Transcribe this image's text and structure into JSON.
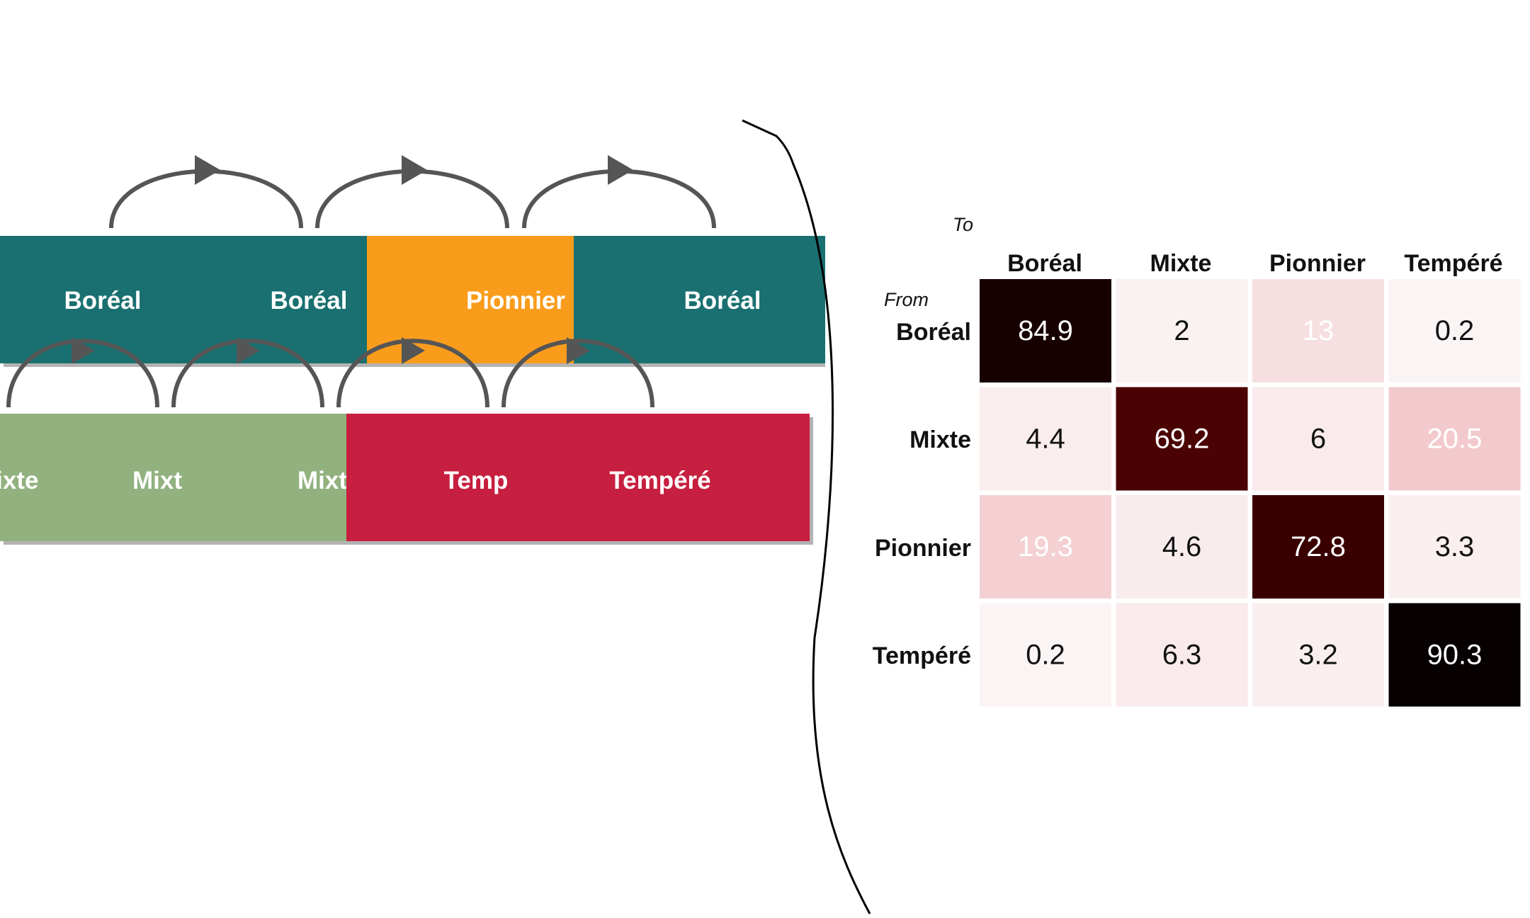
{
  "colors": {
    "boreal": "#1a7070",
    "pionnier": "#f99c1c",
    "mixte": "#91b17e",
    "tempere": "#c71f3f",
    "arrow": "#555555",
    "shadow": "#b3b3b3",
    "label": "#ffffff"
  },
  "timeline": {
    "top": {
      "segments": [
        {
          "state": "boreal",
          "label": "Boréal"
        },
        {
          "state": "boreal",
          "label": "Boréal"
        },
        {
          "state": "pionnier",
          "label": "Pionnier"
        },
        {
          "state": "boreal",
          "label": "Boréal"
        }
      ]
    },
    "bottom": {
      "segments": [
        {
          "state": "mixte",
          "label": "Mixte"
        },
        {
          "state": "mixte",
          "label": "Mixte"
        },
        {
          "state": "mixte",
          "label": "Mixte"
        },
        {
          "state": "tempere",
          "label": "Temp"
        },
        {
          "state": "tempere",
          "label": "Tempéré"
        }
      ]
    }
  },
  "matrix": {
    "row_title": "From",
    "col_title": "To",
    "columns": [
      "Boréal",
      "Mixte",
      "Pionnier",
      "Tempéré"
    ],
    "rows": [
      "Boréal",
      "Mixte",
      "Pionnier",
      "Tempéré"
    ],
    "values": [
      [
        84.9,
        2,
        13,
        0.2
      ],
      [
        4.4,
        69.2,
        6,
        20.5
      ],
      [
        19.3,
        4.6,
        72.8,
        3.3
      ],
      [
        0.2,
        6.3,
        3.2,
        90.3
      ]
    ],
    "labels": [
      [
        "84.9",
        "2",
        "13",
        "0.2"
      ],
      [
        "4.4",
        "69.2",
        "6",
        "20.5"
      ],
      [
        "19.3",
        "4.6",
        "72.8",
        "3.3"
      ],
      [
        "0.2",
        "6.3",
        "3.2",
        "90.3"
      ]
    ],
    "colormap": [
      "#fbf4f4",
      "#f5d6d9",
      "#e07a7c",
      "#8a0b0b",
      "#3a0000",
      "#050000"
    ]
  }
}
